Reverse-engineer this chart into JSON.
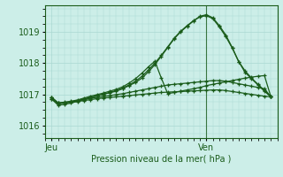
{
  "xlabel": "Pression niveau de la mer( hPa )",
  "bg_color": "#cceee8",
  "grid_color": "#aad8d2",
  "line_color": "#1a5c1a",
  "x_ticks": [
    0,
    24
  ],
  "x_tick_labels": [
    "Jeu",
    "Ven"
  ],
  "ylim": [
    1015.6,
    1019.85
  ],
  "xlim": [
    -1,
    35
  ],
  "yticks": [
    1016,
    1017,
    1018,
    1019
  ],
  "vline_x": 24,
  "series": {
    "x": [
      0,
      1,
      2,
      3,
      4,
      5,
      6,
      7,
      8,
      9,
      10,
      11,
      12,
      13,
      14,
      15,
      16,
      17,
      18,
      19,
      20,
      21,
      22,
      23,
      24,
      25,
      26,
      27,
      28,
      29,
      30,
      31,
      32,
      33,
      34
    ],
    "s1": [
      1016.85,
      1016.7,
      1016.72,
      1016.76,
      1016.8,
      1016.85,
      1016.9,
      1016.95,
      1017.0,
      1017.05,
      1017.1,
      1017.18,
      1017.28,
      1017.38,
      1017.52,
      1017.72,
      1017.95,
      1018.22,
      1018.5,
      1018.78,
      1019.0,
      1019.18,
      1019.35,
      1019.5,
      1019.55,
      1019.45,
      1019.2,
      1018.9,
      1018.5,
      1018.05,
      1017.7,
      1017.5,
      1017.3,
      1017.1,
      1016.92
    ],
    "s2": [
      1016.85,
      1016.65,
      1016.68,
      1016.72,
      1016.78,
      1016.84,
      1016.9,
      1016.95,
      1017.0,
      1017.06,
      1017.12,
      1017.2,
      1017.3,
      1017.42,
      1017.58,
      1017.78,
      1018.0,
      1018.25,
      1018.52,
      1018.8,
      1019.02,
      1019.2,
      1019.36,
      1019.48,
      1019.52,
      1019.42,
      1019.16,
      1018.85,
      1018.48,
      1018.05,
      1017.75,
      1017.52,
      1017.32,
      1017.12,
      1016.92
    ],
    "s3": [
      1016.9,
      1016.72,
      1016.75,
      1016.78,
      1016.82,
      1016.88,
      1016.94,
      1016.99,
      1017.04,
      1017.1,
      1017.16,
      1017.24,
      1017.36,
      1017.5,
      1017.68,
      1017.88,
      1018.06,
      1017.52,
      1017.02,
      1017.06,
      1017.1,
      1017.14,
      1017.18,
      1017.22,
      1017.28,
      1017.32,
      1017.36,
      1017.4,
      1017.44,
      1017.48,
      1017.52,
      1017.55,
      1017.58,
      1017.6,
      1016.92
    ],
    "s4": [
      1016.9,
      1016.72,
      1016.74,
      1016.76,
      1016.79,
      1016.83,
      1016.87,
      1016.9,
      1016.93,
      1016.96,
      1016.99,
      1017.02,
      1017.06,
      1017.1,
      1017.14,
      1017.18,
      1017.22,
      1017.26,
      1017.3,
      1017.32,
      1017.34,
      1017.36,
      1017.38,
      1017.4,
      1017.42,
      1017.44,
      1017.44,
      1017.42,
      1017.38,
      1017.34,
      1017.3,
      1017.26,
      1017.22,
      1017.18,
      1016.92
    ],
    "s5": [
      1016.9,
      1016.72,
      1016.73,
      1016.75,
      1016.77,
      1016.8,
      1016.83,
      1016.86,
      1016.88,
      1016.9,
      1016.92,
      1016.94,
      1016.96,
      1016.98,
      1017.0,
      1017.02,
      1017.04,
      1017.06,
      1017.07,
      1017.08,
      1017.09,
      1017.1,
      1017.11,
      1017.12,
      1017.13,
      1017.14,
      1017.14,
      1017.12,
      1017.09,
      1017.06,
      1017.03,
      1017.0,
      1016.97,
      1016.94,
      1016.92
    ]
  }
}
